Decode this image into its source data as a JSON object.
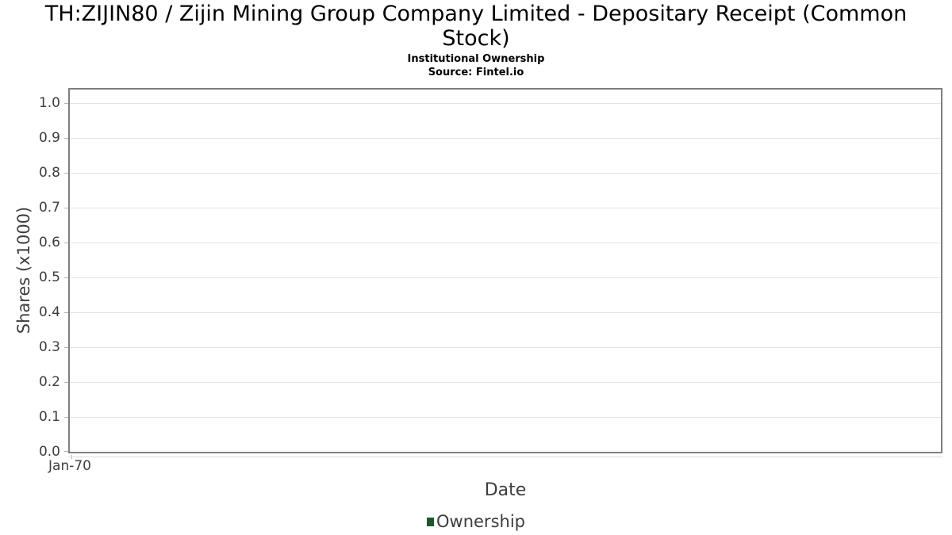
{
  "header": {
    "title": "TH:ZIJIN80 / Zijin Mining Group Company Limited - Depositary Receipt (Common Stock)",
    "subtitle": "Institutional Ownership",
    "source": "Source: Fintel.io"
  },
  "chart_data": {
    "type": "line",
    "title": "TH:ZIJIN80 / Zijin Mining Group Company Limited - Depositary Receipt (Common Stock)",
    "subtitle": "Institutional Ownership",
    "source": "Source: Fintel.io",
    "xlabel": "Date",
    "ylabel": "Shares (x1000)",
    "y_tick_labels": [
      "0.0",
      "0.1",
      "0.2",
      "0.3",
      "0.4",
      "0.5",
      "0.6",
      "0.7",
      "0.8",
      "0.9",
      "1.0"
    ],
    "x_tick_labels": [
      "Jan-70"
    ],
    "ylim": [
      0,
      1.05
    ],
    "grid": true,
    "legend_position": "bottom",
    "series": [
      {
        "name": "Ownership",
        "color": "#1e5631",
        "x": [],
        "values": []
      }
    ]
  },
  "colors": {
    "background": "#ffffff",
    "plot_border": "#7f7f7f",
    "gridline": "#e4e4e4",
    "tick": "#b3b3b3",
    "axis_text": "#3d3d3d",
    "title_text": "#000000",
    "legend_marker": "#1e5631"
  }
}
